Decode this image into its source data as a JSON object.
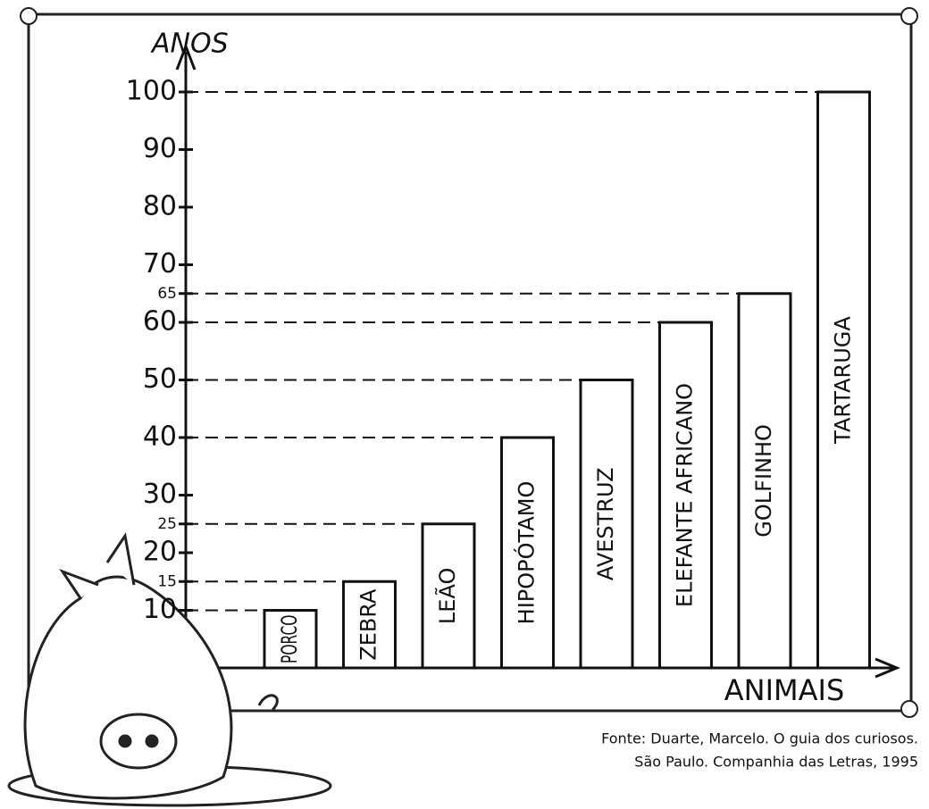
{
  "chart_data": {
    "type": "bar",
    "y_label": "ANOS",
    "x_label": "ANIMAIS",
    "categories": [
      "PORCO",
      "ZEBRA",
      "LEÃO",
      "HIPOPÓTAMO",
      "AVESTRUZ",
      "ELEFANTE AFRICANO",
      "GOLFINHO",
      "TARTARUGA"
    ],
    "values": [
      10,
      15,
      25,
      40,
      50,
      60,
      65,
      100
    ],
    "color": "#ffffff",
    "ylim": [
      0,
      100
    ],
    "yticks": [
      10,
      15,
      20,
      25,
      30,
      40,
      50,
      60,
      65,
      70,
      80,
      90,
      100
    ],
    "guides": true,
    "source": [
      "Fonte: Duarte, Marcelo. O guia dos curiosos.",
      "São Paulo. Companhia das Letras, 1995"
    ]
  }
}
